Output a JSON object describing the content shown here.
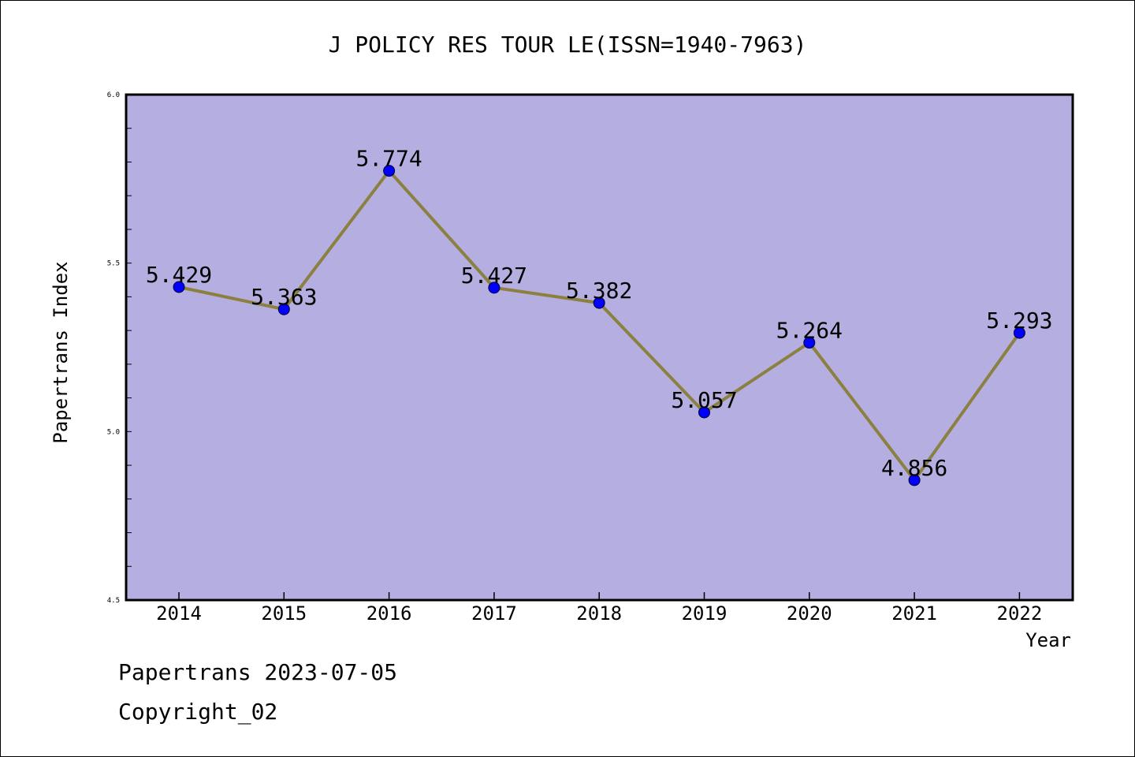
{
  "chart_data": {
    "type": "line",
    "title": "J POLICY RES TOUR LE(ISSN=1940-7963)",
    "xlabel": "Year",
    "ylabel": "Papertrans Index",
    "categories": [
      "2014",
      "2015",
      "2016",
      "2017",
      "2018",
      "2019",
      "2020",
      "2021",
      "2022"
    ],
    "series": [
      {
        "values": [
          5.429,
          5.363,
          5.774,
          5.427,
          5.382,
          5.057,
          5.264,
          4.856,
          5.293
        ],
        "labels": [
          "5.429",
          "5.363",
          "5.774",
          "5.427",
          "5.382",
          "5.057",
          "5.264",
          "4.856",
          "5.293"
        ]
      }
    ],
    "ylim": [
      4.5,
      6.0
    ],
    "yticks": [
      "4.5",
      "5.0",
      "5.5",
      "6.0"
    ],
    "minor_tick_step": 0.1,
    "grid": false,
    "colors": {
      "plot_background": "#b5aee1",
      "line": "#8b8040",
      "marker": "#0000ff"
    }
  },
  "footer": {
    "line1": "Papertrans 2023-07-05",
    "line2": "Copyright_02"
  }
}
